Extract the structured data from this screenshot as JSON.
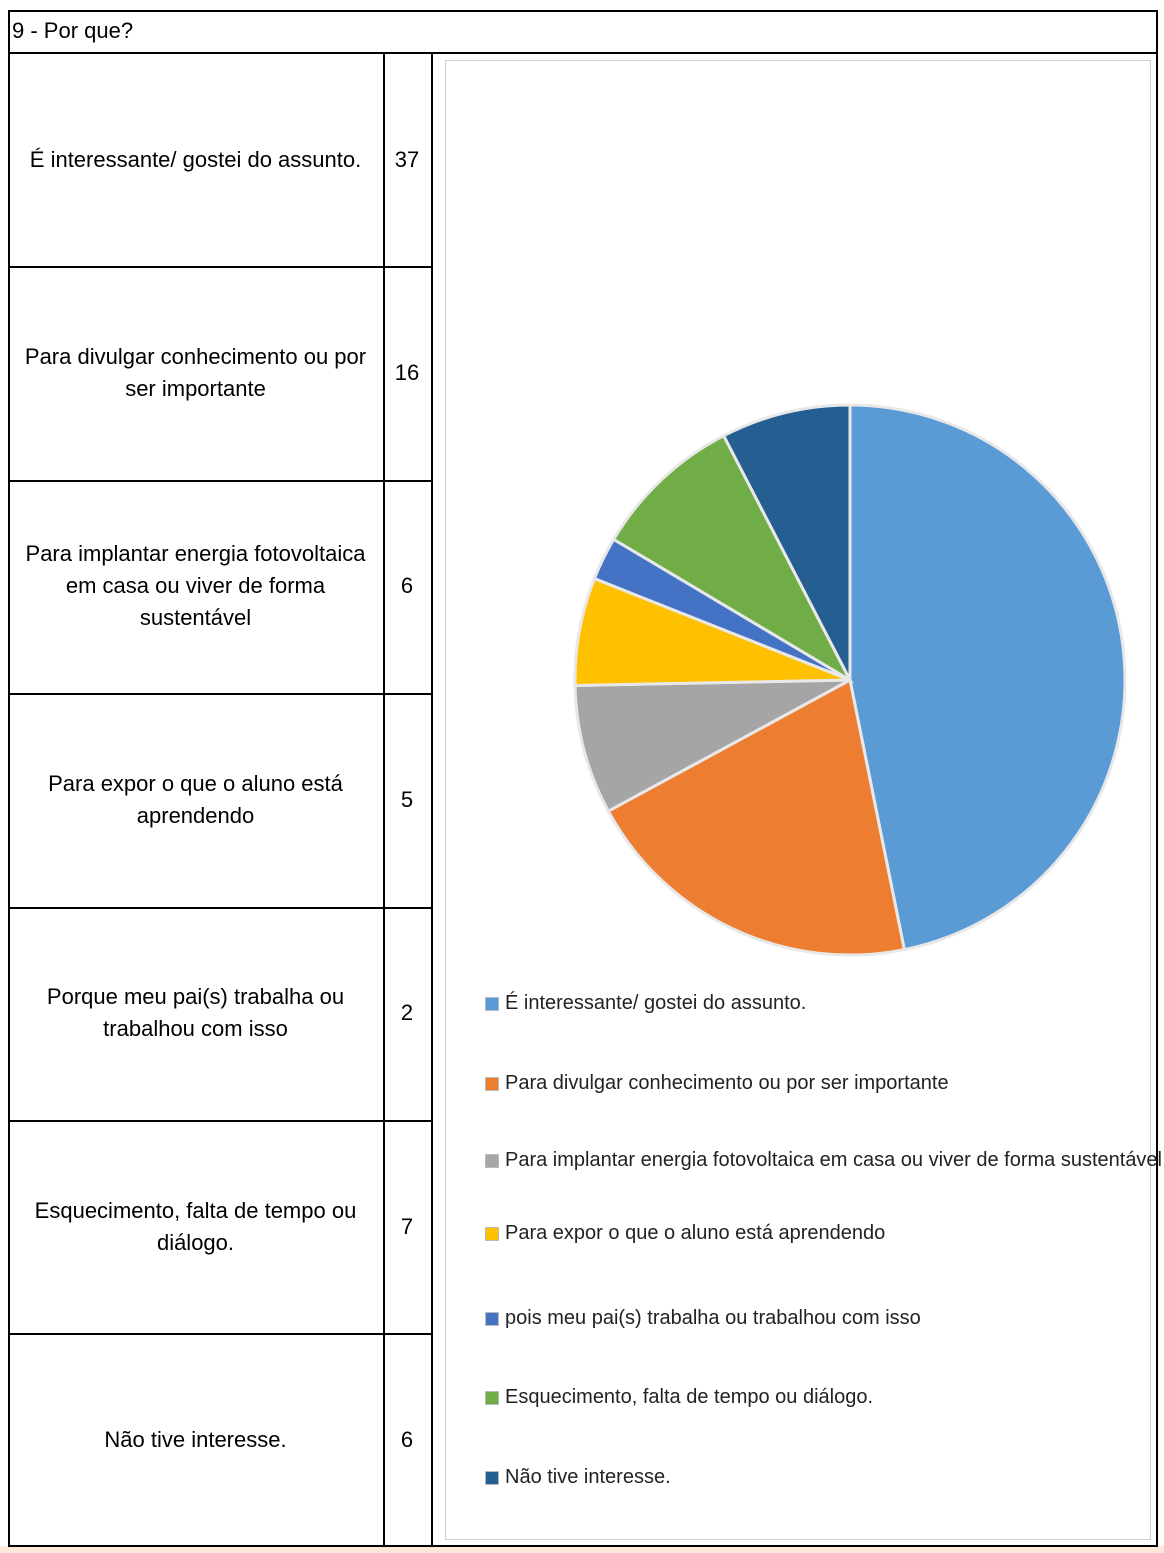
{
  "title": "9 - Por que?",
  "table": {
    "rows": [
      "É interessante/ gostei do assunto.",
      "Para divulgar conhecimento ou por ser importante",
      "Para implantar energia fotovoltaica em casa ou viver de forma sustentável",
      "Para expor o que o aluno está aprendendo",
      "Porque meu pai(s) trabalha ou trabalhou com isso",
      "Esquecimento, falta de tempo ou diálogo.",
      "Não tive interesse."
    ]
  },
  "chart_data": {
    "type": "pie",
    "categories": [
      "É interessante/ gostei do assunto.",
      "Para divulgar conhecimento ou por ser importante",
      "Para implantar energia fotovoltaica em casa ou viver de forma sustentável",
      "Para expor o que o aluno está aprendendo",
      "pois meu pai(s) trabalha ou trabalhou com isso",
      "Esquecimento, falta de tempo ou diálogo.",
      "Não tive interesse."
    ],
    "values": [
      37,
      16,
      6,
      5,
      2,
      7,
      6
    ],
    "colors": [
      "#5b9bd5",
      "#ed7d31",
      "#a5a5a5",
      "#ffc000",
      "#4472c4",
      "#70ad47",
      "#255e91"
    ]
  }
}
